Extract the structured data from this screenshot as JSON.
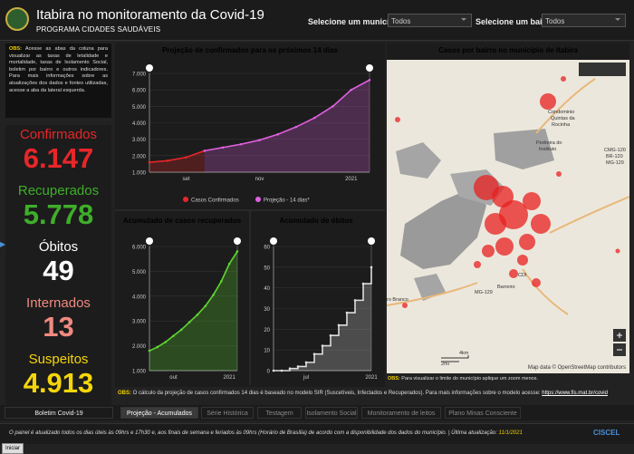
{
  "header": {
    "title": "Itabira no monitoramento da Covid-19",
    "subtitle": "PROGRAMA CIDADES SAUDÁVEIS",
    "municipio_label": "Selecione um município:",
    "municipio_value": "Todos",
    "bairro_label": "Selecione um bairro:",
    "bairro_value": "Todos"
  },
  "note": {
    "label": "OBS:",
    "text": "Acesse as abas da coluna para visualizar as taxas de letalidade e mortalidade, taxas de Isolamento Social, boletim por bairro e outros indicadores. Para mais informações sobre as atualizações dos dados e fontes utilizadas, acesse a aba da lateral esquerda."
  },
  "stats": [
    {
      "label": "Confirmados",
      "value": "6.147",
      "color": "#e8262a"
    },
    {
      "label": "Recuperados",
      "value": "5.778",
      "color": "#3fae2a"
    },
    {
      "label": "Óbitos",
      "value": "49",
      "color": "#ffffff"
    },
    {
      "label": "Internados",
      "value": "13",
      "color": "#f08a80"
    },
    {
      "label": "Suspeitos",
      "value": "4.913",
      "color": "#f5d60a"
    }
  ],
  "projection": {
    "type": "line",
    "title": "Projeção de confirmados para os próximos 14 dias",
    "categories": [
      null,
      null,
      "set",
      null,
      null,
      null,
      "nov",
      null,
      null,
      null,
      null,
      "2021",
      null
    ],
    "series": [
      {
        "name": "Casos Confirmados",
        "color": "#e8262a",
        "values": [
          1600,
          1700,
          1900,
          2300,
          null,
          null,
          null,
          null,
          null,
          null,
          null,
          null,
          null
        ]
      },
      {
        "name": "Projeção - 14 dias*",
        "color": "#e060e0",
        "values": [
          null,
          null,
          null,
          2300,
          2500,
          2700,
          2950,
          3300,
          3750,
          4300,
          5000,
          6000,
          6600
        ]
      }
    ],
    "ylim": [
      1000,
      7000
    ],
    "yticks": [
      {
        "value": 1000,
        "label": "1.000"
      },
      {
        "value": 2000,
        "label": "2.000"
      },
      {
        "value": 3000,
        "label": "3.000"
      },
      {
        "value": 4000,
        "label": "4.000"
      },
      {
        "value": 5000,
        "label": "5.000"
      },
      {
        "value": 6000,
        "label": "6.000"
      },
      {
        "value": 7000,
        "label": "7.000"
      }
    ],
    "legend": true
  },
  "recovered": {
    "type": "line",
    "title": "Acumulado de casos recuperados",
    "categories": [
      null,
      null,
      null,
      "out",
      null,
      null,
      null,
      null,
      null,
      null,
      "2021",
      null
    ],
    "series": [
      {
        "name": "Recuperados",
        "color": "#5fd630",
        "values": [
          1800,
          1950,
          2150,
          2400,
          2650,
          2950,
          3250,
          3600,
          4050,
          4600,
          5300,
          5800
        ]
      }
    ],
    "ylim": [
      1000,
      6000
    ],
    "yticks": [
      {
        "value": 1000,
        "label": "1.000"
      },
      {
        "value": 2000,
        "label": "2.000"
      },
      {
        "value": 3000,
        "label": "3.000"
      },
      {
        "value": 4000,
        "label": "4.000"
      },
      {
        "value": 5000,
        "label": "5.000"
      },
      {
        "value": 6000,
        "label": "6.000"
      }
    ],
    "legend": false
  },
  "deaths": {
    "type": "line",
    "title": "Acumulado de óbitos",
    "categories": [
      null,
      null,
      null,
      null,
      "jul",
      null,
      null,
      null,
      null,
      null,
      null,
      null,
      "2021"
    ],
    "series": [
      {
        "name": "Óbitos",
        "color": "#dddddd",
        "values": [
          0,
          0,
          1,
          2,
          4,
          8,
          12,
          17,
          22,
          28,
          34,
          42,
          50
        ]
      }
    ],
    "ylim": [
      0,
      60
    ],
    "yticks": [
      0,
      10,
      20,
      30,
      40,
      50,
      60
    ],
    "step": true,
    "legend": false
  },
  "map": {
    "title": "Casos por bairro no município de Itabira",
    "labels": [
      "Condominio",
      "Quintas da",
      "Rocinha",
      "Pedreira do",
      "Instituto",
      "CMG-120",
      "BR-120",
      "MG-129",
      "MG-129",
      "Barreiro",
      "CDI",
      "ro Branco",
      "4km",
      "2mi"
    ],
    "attribution": "Map data © OpenStreetMap contributors",
    "note_label": "OBS:",
    "note_text": "Para visualizar o limite do município aplique um zoom menos."
  },
  "footnote": {
    "label": "OBS:",
    "text": "O cálculo da projeção de casos confirmados 14 dias é baseado no modelo SIR (Suscetíveis, Infectados e Recuperados). Para mais informações sobre o modelo acesse:",
    "link": "https://www.fis.mat.br/covid"
  },
  "tabs": {
    "side": "Boletim Covid-19",
    "items": [
      "Projeção - Acumulados",
      "Série Histórica",
      "Testagem",
      "Isolamento Social",
      "Monitoramento de leitos",
      "Plano Minas Consciente"
    ],
    "active": 0
  },
  "bottom": {
    "text": "O painel é atualizado todos os dias úteis às 09hrs e 17h30 e, aos finais de semana e feriados às 09hrs (Horário de Brasília) de acordo com a disponibilidade dos dados do município. | Última atualização:",
    "date": "11/1/2021",
    "brand": "CISCEL",
    "start": "Iniciar"
  }
}
